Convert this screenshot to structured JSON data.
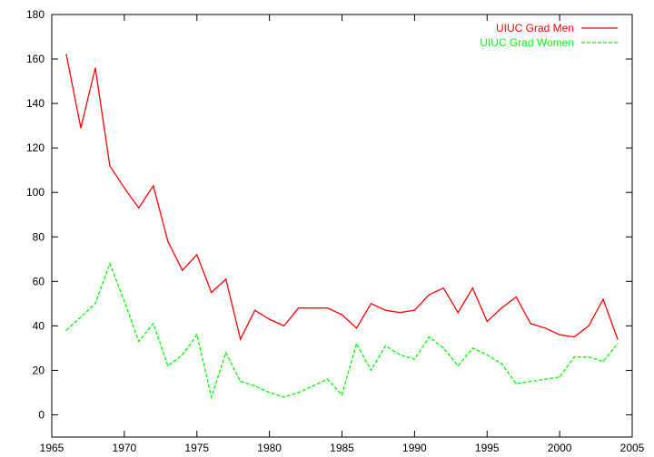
{
  "chart_data": {
    "type": "line",
    "title": "",
    "xlabel": "",
    "ylabel": "",
    "xlim": [
      1965,
      2005
    ],
    "ylim": [
      -10,
      180
    ],
    "xticks": [
      1965,
      1970,
      1975,
      1980,
      1985,
      1990,
      1995,
      2000,
      2005
    ],
    "yticks": [
      0,
      20,
      40,
      60,
      80,
      100,
      120,
      140,
      160,
      180
    ],
    "grid": false,
    "legend_position": "top-right",
    "series": [
      {
        "name": "UIUC Grad Men",
        "color": "#ff0000",
        "dash": "solid",
        "x": [
          1966,
          1967,
          1968,
          1969,
          1970,
          1971,
          1972,
          1973,
          1974,
          1975,
          1976,
          1977,
          1978,
          1979,
          1980,
          1981,
          1982,
          1983,
          1984,
          1985,
          1986,
          1987,
          1988,
          1989,
          1990,
          1991,
          1992,
          1993,
          1994,
          1995,
          1996,
          1997,
          1998,
          1999,
          2000,
          2001,
          2002,
          2003,
          2004
        ],
        "y": [
          162,
          129,
          156,
          112,
          102,
          93,
          103,
          78,
          65,
          72,
          55,
          61,
          34,
          47,
          43,
          40,
          48,
          48,
          48,
          45,
          39,
          50,
          47,
          46,
          47,
          54,
          57,
          46,
          57,
          42,
          48,
          53,
          41,
          39,
          36,
          35,
          40,
          52,
          34
        ]
      },
      {
        "name": "UIUC Grad Women",
        "color": "#00ff00",
        "dash": "dashed",
        "x": [
          1966,
          1967,
          1968,
          1969,
          1970,
          1971,
          1972,
          1973,
          1974,
          1975,
          1976,
          1977,
          1978,
          1979,
          1980,
          1981,
          1982,
          1983,
          1984,
          1985,
          1986,
          1987,
          1988,
          1989,
          1990,
          1991,
          1992,
          1993,
          1994,
          1995,
          1996,
          1997,
          1998,
          1999,
          2000,
          2001,
          2002,
          2003,
          2004
        ],
        "y": [
          38,
          44,
          50,
          68,
          51,
          33,
          41,
          22,
          27,
          36,
          8,
          28,
          15,
          13,
          10,
          8,
          10,
          13,
          16,
          9,
          32,
          20,
          31,
          27,
          25,
          35,
          30,
          22,
          30,
          27,
          23,
          14,
          15,
          16,
          17,
          26,
          26,
          24,
          32
        ]
      }
    ]
  }
}
